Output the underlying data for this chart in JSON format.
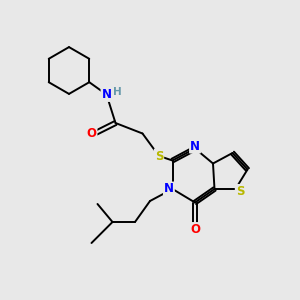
{
  "background_color": "#e8e8e8",
  "figsize": [
    3.0,
    3.0
  ],
  "dpi": 100,
  "atom_colors": {
    "C": "#000000",
    "N": "#0000ff",
    "O": "#ff0000",
    "S": "#b8b800",
    "H": "#6699aa"
  },
  "bond_color": "#000000",
  "bond_width": 1.4,
  "font_size": 8.5,
  "font_size_small": 7.5,
  "xlim": [
    0,
    10
  ],
  "ylim": [
    0,
    10
  ]
}
